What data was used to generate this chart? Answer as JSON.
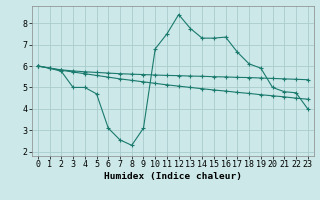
{
  "xlabel": "Humidex (Indice chaleur)",
  "background_color": "#cce8e8",
  "grid_color": "#aacccc",
  "line_color": "#1a7a6e",
  "xlim": [
    -0.5,
    23.5
  ],
  "ylim": [
    1.8,
    8.8
  ],
  "xticks": [
    0,
    1,
    2,
    3,
    4,
    5,
    6,
    7,
    8,
    9,
    10,
    11,
    12,
    13,
    14,
    15,
    16,
    17,
    18,
    19,
    20,
    21,
    22,
    23
  ],
  "yticks": [
    2,
    3,
    4,
    5,
    6,
    7,
    8
  ],
  "line1_x": [
    0,
    1,
    2,
    3,
    4,
    5,
    6,
    7,
    8,
    9,
    10,
    11,
    12,
    13,
    14,
    15,
    16,
    17,
    18,
    19,
    20,
    21,
    22,
    23
  ],
  "line1_y": [
    6.0,
    5.9,
    5.82,
    5.77,
    5.73,
    5.7,
    5.67,
    5.64,
    5.62,
    5.6,
    5.58,
    5.56,
    5.55,
    5.53,
    5.52,
    5.5,
    5.49,
    5.47,
    5.46,
    5.44,
    5.42,
    5.4,
    5.38,
    5.36
  ],
  "line2_x": [
    0,
    1,
    2,
    3,
    4,
    5,
    6,
    7,
    8,
    9,
    10,
    11,
    12,
    13,
    14,
    15,
    16,
    17,
    18,
    19,
    20,
    21,
    22,
    23
  ],
  "line2_y": [
    6.0,
    5.9,
    5.8,
    5.72,
    5.64,
    5.56,
    5.48,
    5.4,
    5.33,
    5.26,
    5.19,
    5.12,
    5.06,
    5.0,
    4.94,
    4.88,
    4.83,
    4.77,
    4.72,
    4.66,
    4.61,
    4.56,
    4.5,
    4.45
  ],
  "line3_x": [
    0,
    1,
    2,
    3,
    4,
    5,
    6,
    7,
    8,
    9,
    10,
    11,
    12,
    13,
    14,
    15,
    16,
    17,
    18,
    19,
    20,
    21,
    22,
    23
  ],
  "line3_y": [
    6.0,
    5.9,
    5.75,
    5.0,
    5.0,
    4.7,
    3.1,
    2.55,
    2.3,
    3.1,
    6.8,
    7.5,
    8.4,
    7.75,
    7.3,
    7.3,
    7.35,
    6.65,
    6.1,
    5.9,
    5.0,
    4.8,
    4.75,
    4.0
  ]
}
